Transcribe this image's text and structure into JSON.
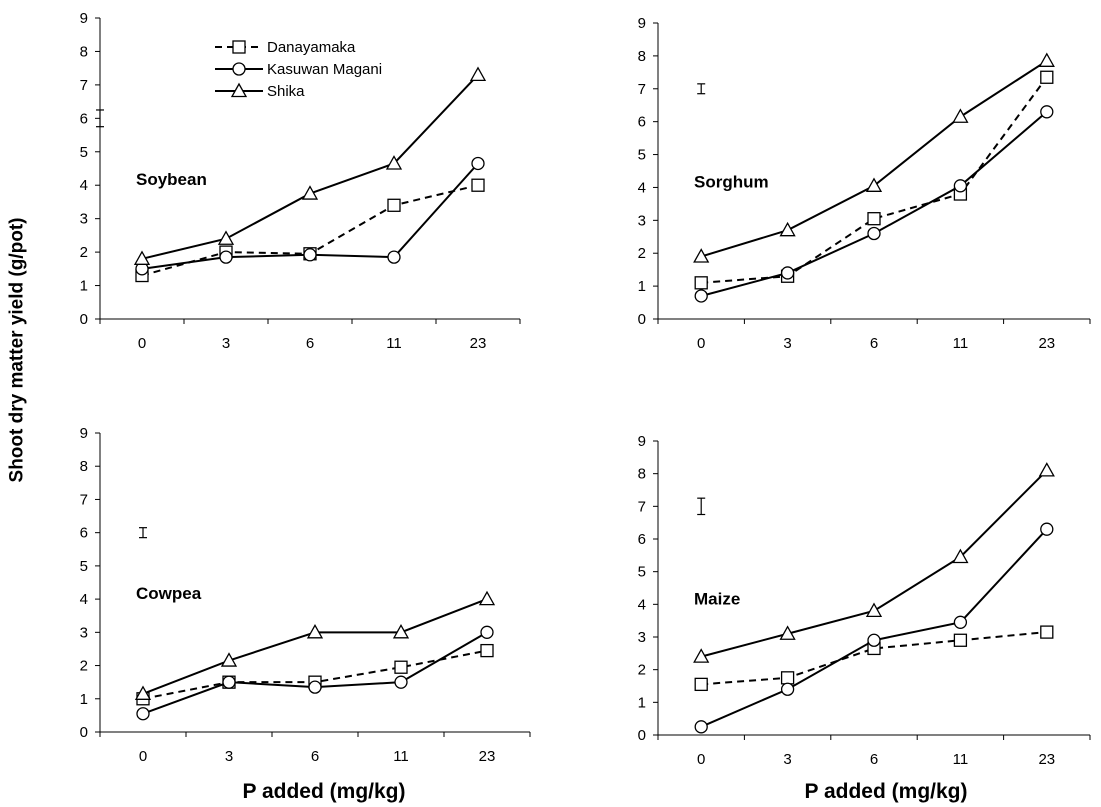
{
  "figure": {
    "y_axis_label": "Shoot dry matter yield (g/pot)",
    "x_axis_label": "P added (mg/kg)"
  },
  "chart_data": [
    {
      "type": "line",
      "title": "Soybean",
      "categories": [
        "0",
        "3",
        "6",
        "11",
        "23"
      ],
      "ylim": [
        0,
        9
      ],
      "yticks": [
        0,
        1,
        2,
        3,
        4,
        5,
        6,
        7,
        8,
        9
      ],
      "legend": "top-center",
      "error_bar": {
        "x": -0.5,
        "y": 6.0,
        "half_range": 0.25
      },
      "series": [
        {
          "name": "Danayamaka",
          "values": [
            1.3,
            2.0,
            1.95,
            3.4,
            4.0
          ]
        },
        {
          "name": "Kasuwan Magani",
          "values": [
            1.5,
            1.85,
            1.92,
            1.85,
            4.65
          ]
        },
        {
          "name": "Shika",
          "values": [
            1.8,
            2.4,
            3.75,
            4.65,
            7.3
          ]
        }
      ]
    },
    {
      "type": "line",
      "title": "Sorghum",
      "categories": [
        "0",
        "3",
        "6",
        "11",
        "23"
      ],
      "ylim": [
        0,
        9
      ],
      "yticks": [
        0,
        1,
        2,
        3,
        4,
        5,
        6,
        7,
        8,
        9
      ],
      "error_bar": {
        "x": 0.0,
        "y": 7.0,
        "half_range": 0.15
      },
      "series": [
        {
          "name": "Danayamaka",
          "values": [
            1.1,
            1.3,
            3.05,
            3.8,
            7.35
          ]
        },
        {
          "name": "Kasuwan Magani",
          "values": [
            0.7,
            1.4,
            2.6,
            4.05,
            6.3
          ]
        },
        {
          "name": "Shika",
          "values": [
            1.9,
            2.7,
            4.05,
            6.15,
            7.85
          ]
        }
      ]
    },
    {
      "type": "line",
      "title": "Cowpea",
      "categories": [
        "0",
        "3",
        "6",
        "11",
        "23"
      ],
      "ylim": [
        0,
        9
      ],
      "yticks": [
        0,
        1,
        2,
        3,
        4,
        5,
        6,
        7,
        8,
        9
      ],
      "error_bar": {
        "x": 0.0,
        "y": 6.0,
        "half_range": 0.15
      },
      "series": [
        {
          "name": "Danayamaka",
          "values": [
            1.0,
            1.5,
            1.5,
            1.95,
            2.45
          ]
        },
        {
          "name": "Kasuwan Magani",
          "values": [
            0.55,
            1.5,
            1.35,
            1.5,
            3.0
          ]
        },
        {
          "name": "Shika",
          "values": [
            1.15,
            2.15,
            3.0,
            3.0,
            4.0
          ]
        }
      ]
    },
    {
      "type": "line",
      "title": "Maize",
      "categories": [
        "0",
        "3",
        "6",
        "11",
        "23"
      ],
      "ylim": [
        0,
        9
      ],
      "yticks": [
        0,
        1,
        2,
        3,
        4,
        5,
        6,
        7,
        8,
        9
      ],
      "error_bar": {
        "x": 0.0,
        "y": 7.0,
        "half_range": 0.25
      },
      "series": [
        {
          "name": "Danayamaka",
          "values": [
            1.55,
            1.75,
            2.65,
            2.9,
            3.15
          ]
        },
        {
          "name": "Kasuwan Magani",
          "values": [
            0.25,
            1.4,
            2.9,
            3.45,
            6.3
          ]
        },
        {
          "name": "Shika",
          "values": [
            2.4,
            3.1,
            3.8,
            5.45,
            8.1
          ]
        }
      ]
    }
  ]
}
